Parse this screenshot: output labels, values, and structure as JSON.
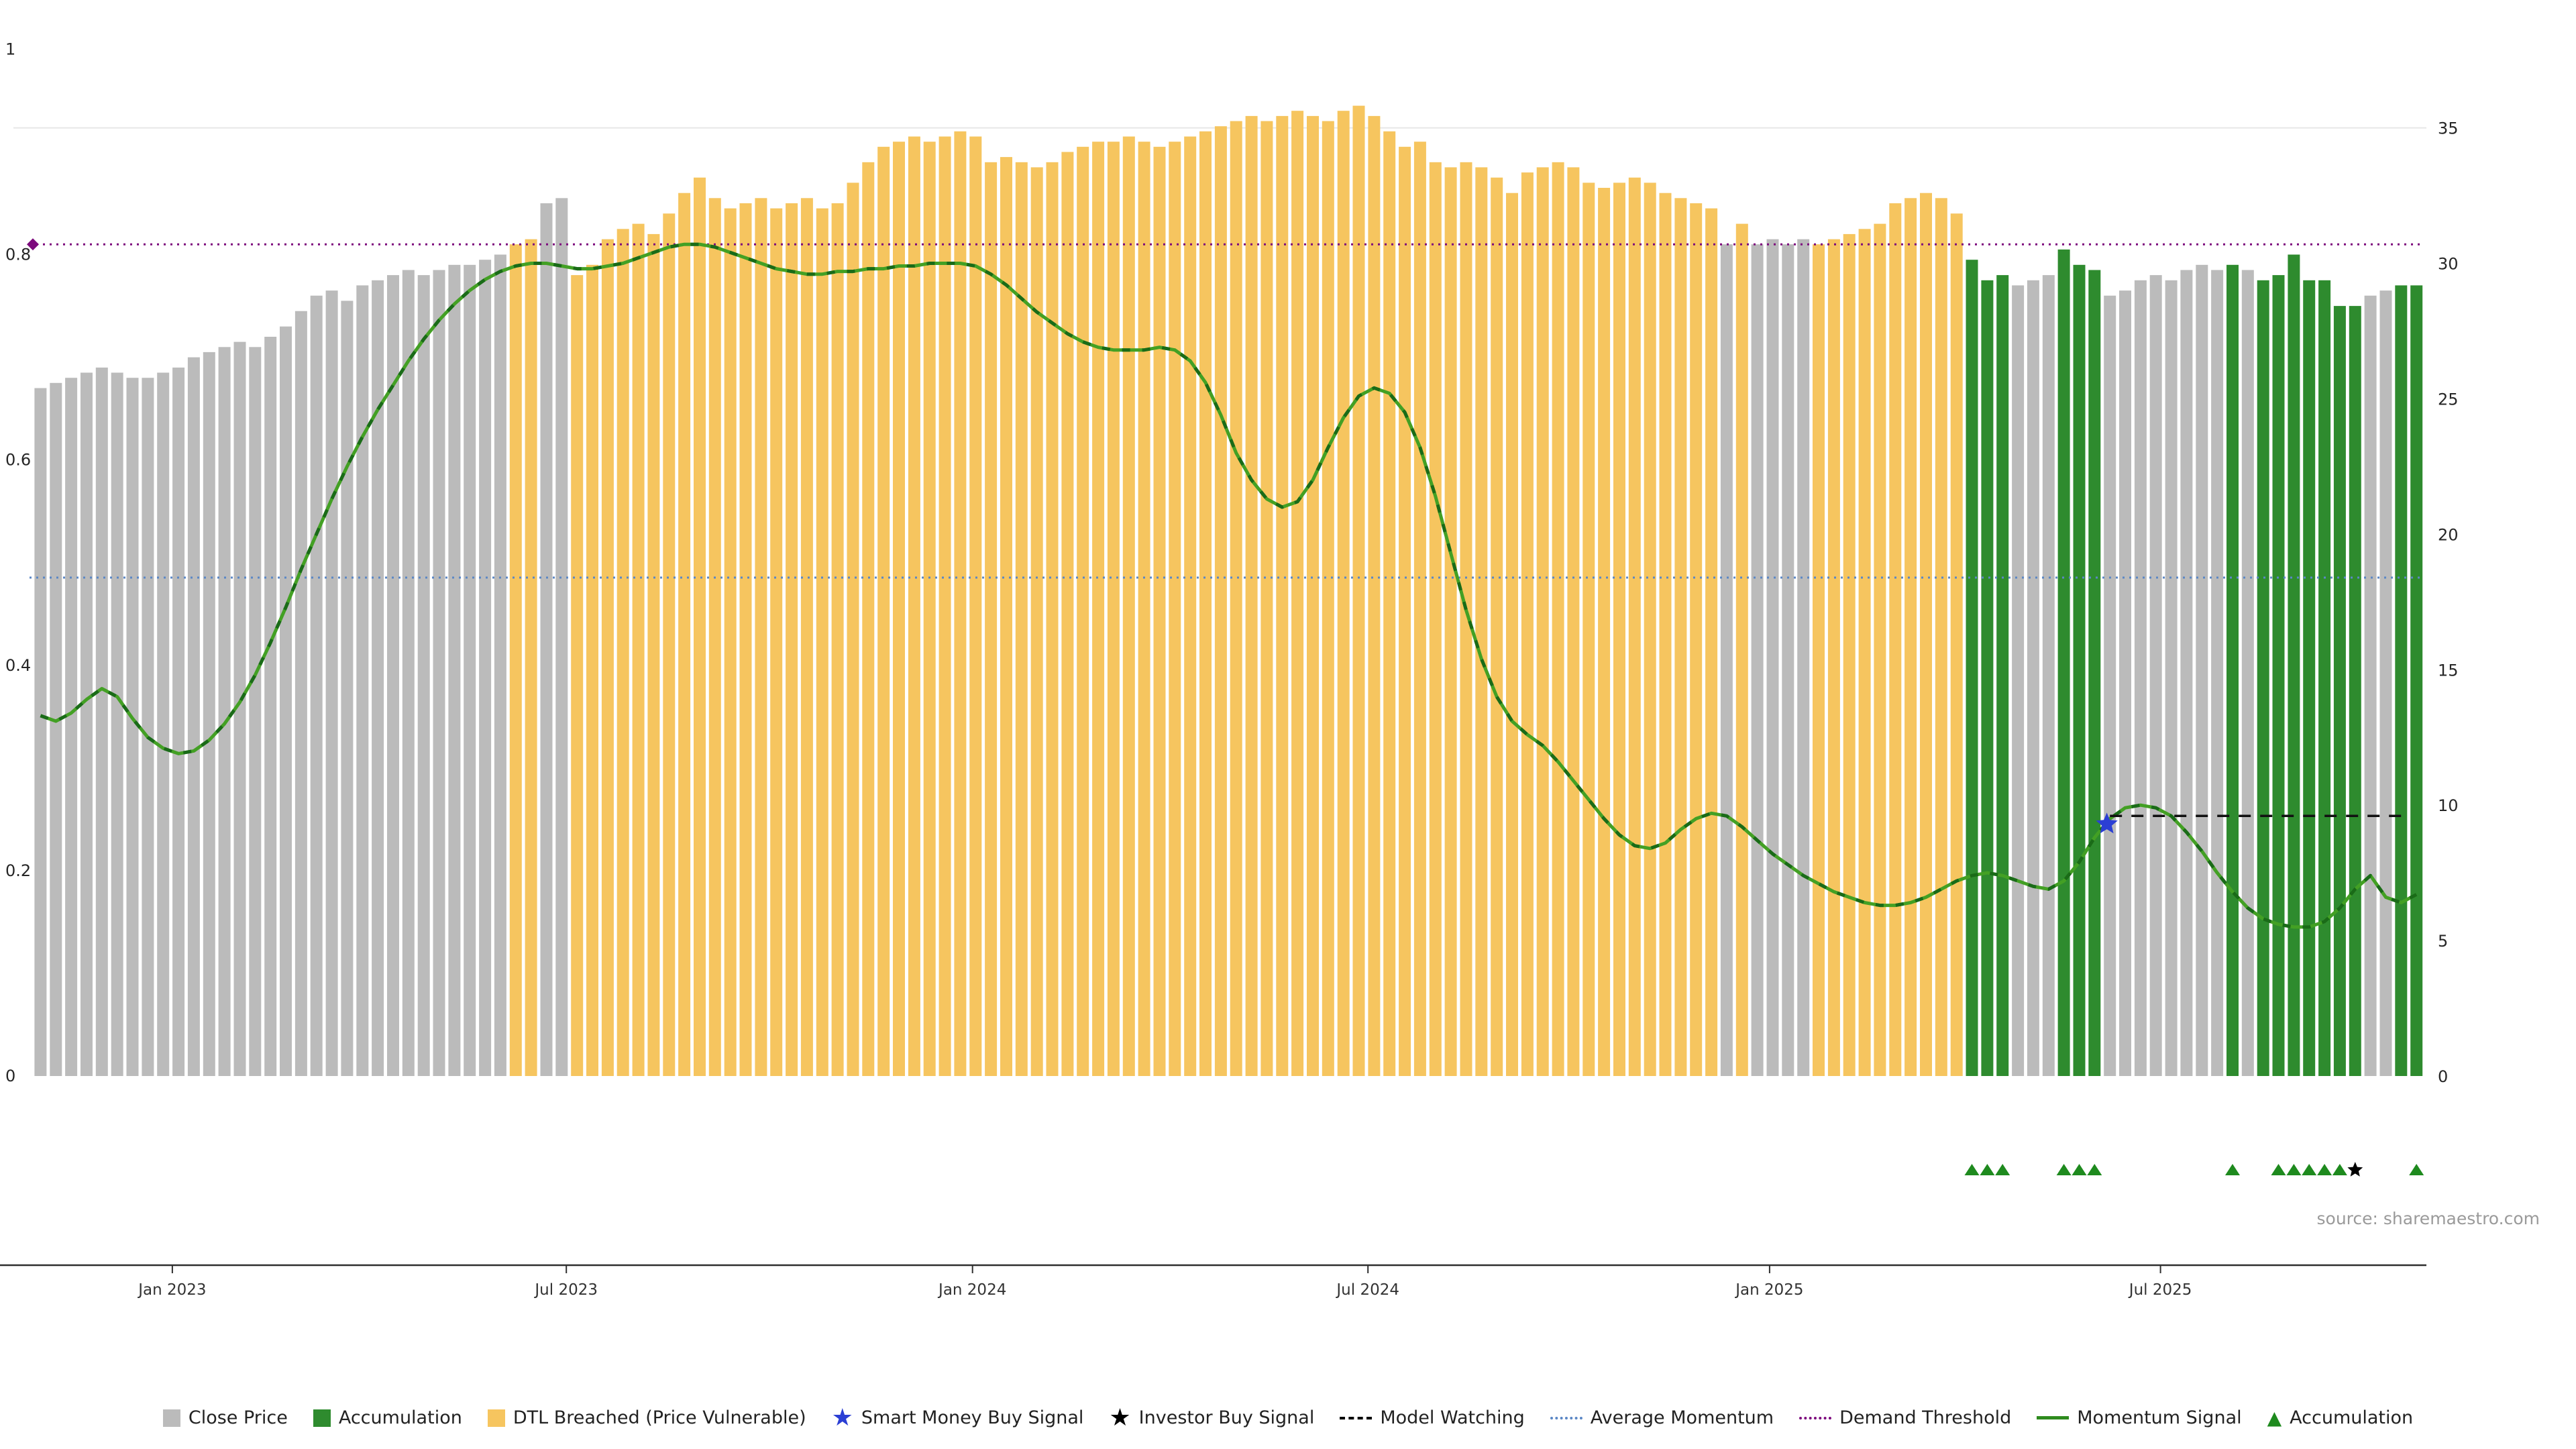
{
  "meta": {
    "source": "source: sharemaestro.com"
  },
  "chart_data": {
    "type": "bar+line",
    "left_axis": {
      "ticks": [
        0,
        0.2,
        0.4,
        0.6,
        0.8,
        1
      ],
      "range": [
        0,
        1
      ]
    },
    "right_axis": {
      "ticks": [
        0,
        5,
        10,
        15,
        20,
        25,
        30,
        35
      ],
      "range": [
        0,
        35
      ]
    },
    "x_axis": {
      "tick_labels": [
        "Jan 2023",
        "Jul 2023",
        "Jan 2024",
        "Jul 2024",
        "Jan 2025",
        "Jul 2025"
      ],
      "tick_positions": [
        8.6,
        34.3,
        60.8,
        86.6,
        112.8,
        138.3
      ]
    },
    "close_price": {
      "axis": "left",
      "values": [
        0.67,
        0.675,
        0.68,
        0.685,
        0.69,
        0.685,
        0.68,
        0.68,
        0.685,
        0.69,
        0.7,
        0.705,
        0.71,
        0.715,
        0.71,
        0.72,
        0.73,
        0.745,
        0.76,
        0.765,
        0.755,
        0.77,
        0.775,
        0.78,
        0.785,
        0.78,
        0.785,
        0.79,
        0.79,
        0.795,
        0.8,
        0.81,
        0.815,
        0.85,
        0.855,
        0.78,
        0.79,
        0.815,
        0.825,
        0.83,
        0.82,
        0.84,
        0.86,
        0.875,
        0.855,
        0.845,
        0.85,
        0.855,
        0.845,
        0.85,
        0.855,
        0.845,
        0.85,
        0.87,
        0.89,
        0.905,
        0.91,
        0.915,
        0.91,
        0.915,
        0.92,
        0.915,
        0.89,
        0.895,
        0.89,
        0.885,
        0.89,
        0.9,
        0.905,
        0.91,
        0.91,
        0.915,
        0.91,
        0.905,
        0.91,
        0.915,
        0.92,
        0.925,
        0.93,
        0.935,
        0.93,
        0.935,
        0.94,
        0.935,
        0.93,
        0.94,
        0.945,
        0.935,
        0.92,
        0.905,
        0.91,
        0.89,
        0.885,
        0.89,
        0.885,
        0.875,
        0.86,
        0.88,
        0.885,
        0.89,
        0.885,
        0.87,
        0.865,
        0.87,
        0.875,
        0.87,
        0.86,
        0.855,
        0.85,
        0.845,
        0.81,
        0.83,
        0.81,
        0.815,
        0.81,
        0.815,
        0.81,
        0.815,
        0.82,
        0.825,
        0.83,
        0.85,
        0.855,
        0.86,
        0.855,
        0.84,
        0.795,
        0.775,
        0.78,
        0.77,
        0.775,
        0.78,
        0.805,
        0.79,
        0.785,
        0.76,
        0.765,
        0.775,
        0.78,
        0.775,
        0.785,
        0.79,
        0.785,
        0.79,
        0.785,
        0.775,
        0.78,
        0.8,
        0.775,
        0.775,
        0.75,
        0.75,
        0.76,
        0.765,
        0.77,
        0.77
      ],
      "color_segments": [
        {
          "color": "gray",
          "count": 31
        },
        {
          "color": "orange",
          "count": 2
        },
        {
          "color": "gray",
          "count": 2
        },
        {
          "color": "orange",
          "count": 75
        },
        {
          "color": "gray",
          "count": 1
        },
        {
          "color": "orange",
          "count": 1
        },
        {
          "color": "gray",
          "count": 4
        },
        {
          "color": "orange",
          "count": 10
        },
        {
          "color": "green",
          "count": 3
        },
        {
          "color": "gray",
          "count": 3
        },
        {
          "color": "green",
          "count": 3
        },
        {
          "color": "gray",
          "count": 8
        },
        {
          "color": "green",
          "count": 1
        },
        {
          "color": "gray",
          "count": 1
        },
        {
          "color": "green",
          "count": 7
        },
        {
          "color": "gray",
          "count": 2
        },
        {
          "color": "green",
          "count": 2
        }
      ]
    },
    "momentum_signal": {
      "axis": "right",
      "values": [
        13.3,
        13.1,
        13.4,
        13.9,
        14.3,
        14.0,
        13.2,
        12.5,
        12.1,
        11.9,
        12.0,
        12.4,
        13.0,
        13.8,
        14.8,
        16.0,
        17.3,
        18.7,
        20.0,
        21.3,
        22.5,
        23.6,
        24.6,
        25.5,
        26.4,
        27.2,
        27.9,
        28.5,
        29.0,
        29.4,
        29.7,
        29.9,
        30.0,
        30.0,
        29.9,
        29.8,
        29.8,
        29.9,
        30.0,
        30.2,
        30.4,
        30.6,
        30.7,
        30.7,
        30.6,
        30.4,
        30.2,
        30.0,
        29.8,
        29.7,
        29.6,
        29.6,
        29.7,
        29.7,
        29.8,
        29.8,
        29.9,
        29.9,
        30.0,
        30.0,
        30.0,
        29.9,
        29.6,
        29.2,
        28.7,
        28.2,
        27.8,
        27.4,
        27.1,
        26.9,
        26.8,
        26.8,
        26.8,
        26.9,
        26.8,
        26.4,
        25.6,
        24.4,
        23.0,
        22.0,
        21.3,
        21.0,
        21.2,
        22.0,
        23.2,
        24.3,
        25.1,
        25.4,
        25.2,
        24.5,
        23.2,
        21.4,
        19.3,
        17.2,
        15.4,
        14.0,
        13.1,
        12.6,
        12.2,
        11.6,
        10.9,
        10.2,
        9.5,
        8.9,
        8.5,
        8.4,
        8.6,
        9.1,
        9.5,
        9.7,
        9.6,
        9.2,
        8.7,
        8.2,
        7.8,
        7.4,
        7.1,
        6.8,
        6.6,
        6.4,
        6.3,
        6.3,
        6.4,
        6.6,
        6.9,
        7.2,
        7.4,
        7.5,
        7.4,
        7.2,
        7.0,
        6.9,
        7.2,
        7.9,
        8.8,
        9.5,
        9.9,
        10.0,
        9.9,
        9.6,
        9.0,
        8.3,
        7.5,
        6.8,
        6.2,
        5.8,
        5.6,
        5.5,
        5.5,
        5.7,
        6.2,
        6.9,
        7.4,
        6.6,
        6.4,
        6.7
      ]
    },
    "demand_threshold": {
      "axis": "left",
      "value": 0.81
    },
    "average_momentum": {
      "axis": "right",
      "value": 18.4
    },
    "model_watching": {
      "axis": "right",
      "value": 9.6,
      "start_index": 135,
      "end_index": 154.5
    },
    "smart_money_buy_signal": {
      "axis": "right",
      "index": 134.8,
      "value": 9.3
    },
    "accumulation_markers": {
      "indices": [
        126,
        127,
        128,
        132,
        133,
        134,
        143,
        146,
        147,
        148,
        149,
        150,
        155
      ]
    },
    "investor_buy_markers": {
      "indices": [
        151
      ]
    },
    "colors": {
      "gray": "#bbbbbb",
      "orange": "#f6c55f",
      "green": "#2e8b2e",
      "momentum": "#43a024",
      "momentum_dash": "#1a6b18",
      "demand": "#7d0a7d",
      "avg_momentum": "#5b87c5",
      "model_watching": "#111111",
      "star_blue": "#2b3fd4",
      "marker_green": "#1e8a1e",
      "black": "#000000"
    }
  },
  "legend": {
    "items": [
      {
        "type": "square",
        "color": "#bbbbbb",
        "label": "Close Price"
      },
      {
        "type": "square",
        "color": "#2e8b2e",
        "label": "Accumulation"
      },
      {
        "type": "square",
        "color": "#f6c55f",
        "label": "DTL Breached (Price Vulnerable)"
      },
      {
        "type": "star",
        "color": "#2b3fd4",
        "label": "Smart Money Buy Signal"
      },
      {
        "type": "star",
        "color": "#000000",
        "label": "Investor Buy Signal"
      },
      {
        "type": "dash",
        "color": "#000000",
        "label": "Model Watching"
      },
      {
        "type": "dot",
        "color": "#5b87c5",
        "label": "Average Momentum"
      },
      {
        "type": "dot",
        "color": "#7d0a7d",
        "label": "Demand Threshold"
      },
      {
        "type": "line",
        "color": "#2e8b1e",
        "label": "Momentum Signal"
      },
      {
        "type": "triangle",
        "color": "#1e8a1e",
        "label": "Accumulation"
      }
    ]
  }
}
